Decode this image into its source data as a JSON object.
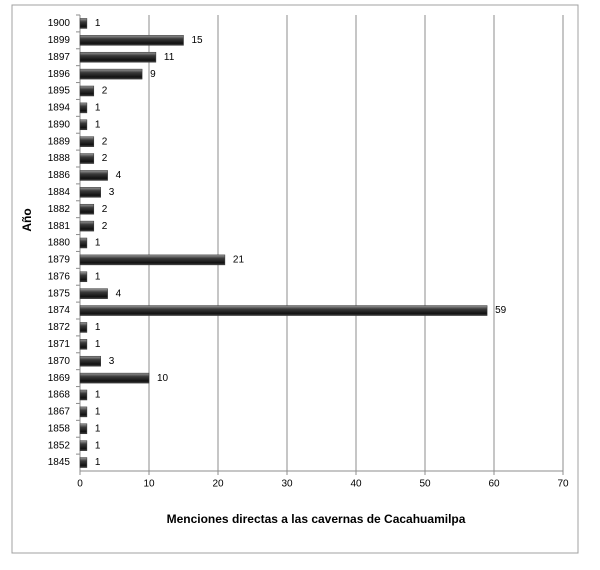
{
  "chart_data": {
    "type": "hbar",
    "x_label": "Menciones directas a las cavernas de Cacahuamilpa",
    "y_label": "Año",
    "categories": [
      "1900",
      "1899",
      "1897",
      "1896",
      "1895",
      "1894",
      "1890",
      "1889",
      "1888",
      "1886",
      "1884",
      "1882",
      "1881",
      "1880",
      "1879",
      "1876",
      "1875",
      "1874",
      "1872",
      "1871",
      "1870",
      "1869",
      "1868",
      "1867",
      "1858",
      "1852",
      "1845"
    ],
    "values": [
      1,
      15,
      11,
      9,
      2,
      1,
      1,
      2,
      2,
      4,
      3,
      2,
      2,
      1,
      21,
      1,
      4,
      59,
      1,
      1,
      3,
      10,
      1,
      1,
      1,
      1,
      1
    ],
    "color": "#333333",
    "xlim": [
      0,
      70
    ],
    "xticks": [
      0,
      10,
      20,
      30,
      40,
      50,
      60,
      70
    ],
    "grid": true
  }
}
